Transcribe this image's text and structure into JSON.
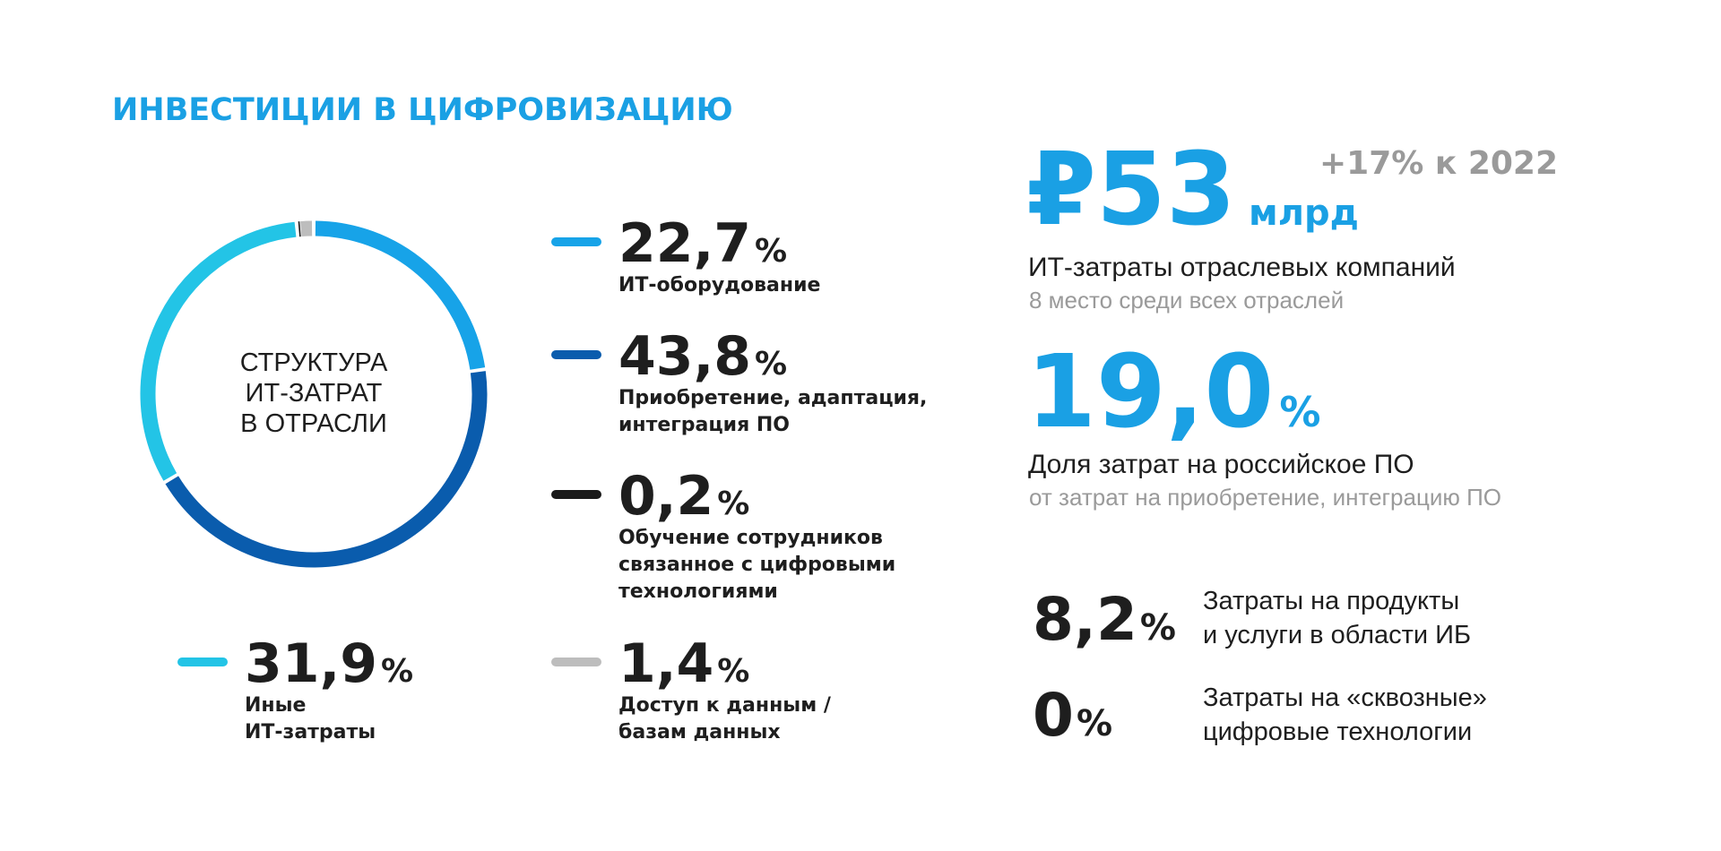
{
  "title": "ИНВЕСТИЦИИ В ЦИФРОВИЗАЦИЮ",
  "chart_data": {
    "type": "pie",
    "center_label": [
      "СТРУКТУРА",
      "ИТ-ЗАТРАТ",
      "В ОТРАСЛИ"
    ],
    "unit": "%",
    "slices": [
      {
        "value_text": "22,7",
        "value": 22.7,
        "label": [
          "ИТ-оборудование"
        ],
        "color": "#17a3e8"
      },
      {
        "value_text": "43,8",
        "value": 43.8,
        "label": [
          "Приобретение, адаптация,",
          "интеграция ПО"
        ],
        "color": "#0a5cad"
      },
      {
        "value_text": "0,2",
        "value": 0.2,
        "label": [
          "Обучение сотрудников",
          "связанное с цифровыми",
          "технологиями"
        ],
        "color": "#1a1a1a"
      },
      {
        "value_text": "1,4",
        "value": 1.4,
        "label": [
          "Доступ к данным /",
          "базам данных"
        ],
        "color": "#bdbdbd"
      },
      {
        "value_text": "31,9",
        "value": 31.9,
        "label": [
          "Иные",
          "ИТ-затраты"
        ],
        "color": "#23c4e6"
      }
    ]
  },
  "kpis": {
    "spend": {
      "value": "₽53",
      "unit": "млрд",
      "growth": "+17% к 2022",
      "title": "ИТ-затраты отраслевых компаний",
      "subtitle": "8 место среди всех отраслей"
    },
    "ru_software": {
      "value": "19,0",
      "unit": "%",
      "title": "Доля затрат на российское ПО",
      "subtitle": "от затрат на приобретение, интеграцию ПО"
    },
    "infosec": {
      "value": "8,2",
      "unit": "%",
      "desc": [
        "Затраты на продукты",
        "и услуги в области ИБ"
      ]
    },
    "end_to_end": {
      "value": "0",
      "unit": "%",
      "desc": [
        "Затраты на «сквозные»",
        "цифровые технологии"
      ]
    }
  },
  "colors": {
    "accent": "#1aa0e4",
    "text": "#1e1e1e",
    "muted": "#9a9a9a"
  }
}
